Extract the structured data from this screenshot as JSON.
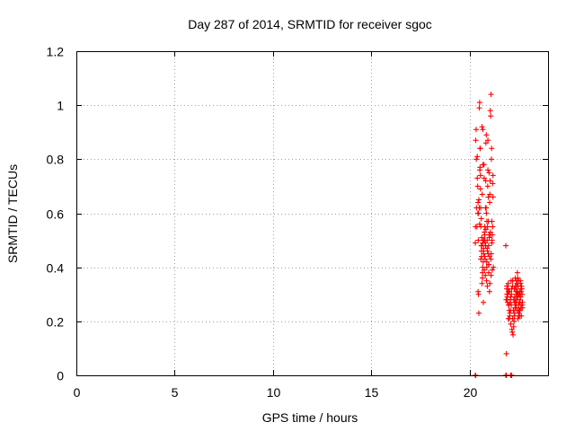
{
  "chart_data": {
    "type": "scatter",
    "title": "Day 287 of 2014, SRMTID for receiver sgoc",
    "xlabel": "GPS time / hours",
    "ylabel": "SRMTID / TECUs",
    "xlim": [
      0,
      24
    ],
    "ylim": [
      0,
      1.2
    ],
    "x_ticks": [
      0,
      5,
      10,
      15,
      20
    ],
    "x_tick_labels": [
      "0",
      "5",
      "10",
      "15",
      "20"
    ],
    "y_ticks": [
      0,
      0.2,
      0.4,
      0.6,
      0.8,
      1.0,
      1.2
    ],
    "y_tick_labels": [
      "0",
      "0.2",
      "0.4",
      "0.6",
      "0.8",
      "1",
      "1.2"
    ],
    "grid": true,
    "marker": "+",
    "color": "#ff0000",
    "series": [
      {
        "x": [
          20.3,
          20.32,
          20.34,
          20.36,
          20.38,
          20.4,
          20.42,
          20.44,
          20.46,
          20.48,
          20.5,
          20.52,
          20.54,
          20.56,
          20.58,
          20.6,
          20.62,
          20.64,
          20.66,
          20.68,
          20.7,
          20.72,
          20.74,
          20.76,
          20.78,
          20.8,
          20.82,
          20.84,
          20.86,
          20.88,
          20.9,
          20.92,
          20.94,
          20.96,
          20.98,
          21.0,
          21.02,
          21.04,
          21.06,
          21.08,
          21.1,
          21.12,
          21.14,
          21.16,
          21.18,
          21.2,
          21.22,
          20.35,
          20.45,
          20.55,
          20.65,
          20.75,
          20.85,
          20.95,
          21.05,
          21.15,
          20.5,
          20.52,
          20.6,
          20.7,
          20.8,
          20.9,
          21.0,
          21.1,
          20.58,
          20.62,
          20.68,
          20.72,
          20.78,
          20.82,
          20.88,
          20.92,
          20.98,
          21.02,
          20.4,
          20.48,
          20.56,
          20.66,
          20.76,
          20.86,
          20.96,
          21.06,
          21.16,
          20.31,
          20.43,
          20.53,
          20.63,
          20.73,
          20.83,
          20.93,
          21.03,
          21.13,
          20.57,
          20.67,
          20.77,
          20.87,
          20.97,
          21.07,
          20.61,
          20.71,
          20.81,
          20.91,
          21.01,
          21.11,
          20.44,
          20.54,
          20.64,
          20.74,
          20.84,
          20.94,
          21.04,
          21.14,
          21.18,
          21.2,
          20.46,
          20.69,
          20.89,
          21.09,
          20.79,
          20.99,
          21.85,
          21.88,
          21.9,
          21.92,
          21.94,
          21.96,
          21.98,
          22.0,
          22.02,
          22.04,
          22.06,
          22.08,
          22.1,
          22.12,
          22.14,
          22.16,
          22.18,
          22.2,
          22.22,
          22.24,
          22.26,
          22.28,
          22.3,
          22.32,
          22.34,
          22.36,
          22.38,
          22.4,
          22.42,
          22.44,
          22.46,
          22.48,
          22.5,
          22.52,
          22.54,
          22.56,
          22.58,
          22.6,
          22.62,
          22.64,
          22.66,
          22.68,
          22.7,
          21.9,
          21.95,
          22.0,
          22.05,
          22.1,
          22.15,
          22.2,
          22.25,
          22.3,
          22.35,
          22.4,
          22.45,
          22.5,
          22.55,
          22.6,
          22.65,
          21.87,
          21.93,
          21.99,
          22.07,
          22.13,
          22.19,
          22.27,
          22.33,
          22.39,
          22.47,
          22.53,
          22.59,
          22.67,
          22.42,
          22.44,
          22.46,
          22.48,
          22.5,
          22.52,
          22.54,
          22.56,
          22.58,
          22.62,
          22.36,
          22.38,
          22.31,
          22.29,
          22.41,
          22.57,
          22.63,
          22.69,
          21.91,
          21.97,
          22.03,
          22.09,
          20.3,
          20.32,
          21.85,
          21.88,
          22.1,
          22.15
        ],
        "y": [
          0.49,
          0.87,
          0.91,
          0.62,
          0.55,
          0.81,
          0.7,
          0.64,
          0.3,
          0.23,
          0.99,
          1.01,
          0.77,
          0.74,
          0.55,
          0.48,
          0.44,
          0.34,
          0.36,
          0.91,
          0.42,
          0.47,
          0.5,
          0.39,
          0.52,
          0.49,
          0.62,
          0.86,
          0.89,
          0.42,
          0.5,
          0.55,
          0.76,
          0.66,
          0.38,
          0.52,
          0.31,
          0.34,
          0.98,
          0.96,
          1.04,
          0.8,
          0.57,
          0.52,
          0.71,
          0.66,
          0.4,
          0.8,
          0.5,
          0.84,
          0.67,
          0.73,
          0.62,
          0.45,
          0.72,
          0.5,
          0.62,
          0.56,
          0.58,
          0.5,
          0.43,
          0.47,
          0.75,
          0.37,
          0.43,
          0.48,
          0.4,
          0.46,
          0.55,
          0.48,
          0.4,
          0.46,
          0.41,
          0.44,
          0.73,
          0.65,
          0.69,
          0.38,
          0.53,
          0.6,
          0.57,
          0.52,
          0.39,
          0.55,
          0.6,
          0.76,
          0.51,
          0.45,
          0.72,
          0.7,
          0.64,
          0.84,
          0.62,
          0.49,
          0.44,
          0.35,
          0.48,
          0.53,
          0.46,
          0.27,
          0.37,
          0.33,
          0.51,
          0.45,
          0.31,
          0.84,
          0.92,
          0.78,
          0.54,
          0.87,
          0.67,
          0.49,
          0.55,
          0.74,
          0.6,
          0.78,
          0.57,
          0.43,
          0.5,
          0.41,
          0.48,
          0.08,
          0.33,
          0.29,
          0.27,
          0.32,
          0.21,
          0.26,
          0.24,
          0.31,
          0.23,
          0.28,
          0.19,
          0.35,
          0.3,
          0.17,
          0.16,
          0.21,
          0.15,
          0.24,
          0.28,
          0.22,
          0.27,
          0.25,
          0.33,
          0.31,
          0.26,
          0.29,
          0.34,
          0.38,
          0.36,
          0.3,
          0.23,
          0.24,
          0.27,
          0.31,
          0.28,
          0.34,
          0.25,
          0.22,
          0.32,
          0.3,
          0.27,
          0.32,
          0.3,
          0.26,
          0.22,
          0.29,
          0.32,
          0.35,
          0.18,
          0.23,
          0.27,
          0.33,
          0.31,
          0.26,
          0.22,
          0.29,
          0.33,
          0.28,
          0.28,
          0.31,
          0.27,
          0.26,
          0.33,
          0.2,
          0.36,
          0.35,
          0.21,
          0.3,
          0.35,
          0.26,
          0.31,
          0.24,
          0.29,
          0.33,
          0.35,
          0.22,
          0.24,
          0.3,
          0.27,
          0.32,
          0.25,
          0.3,
          0.29,
          0.32,
          0.28,
          0.24,
          0.31,
          0.25,
          0.3,
          0.34,
          0.21,
          0.24,
          0.0,
          0.0,
          0.0,
          0.0,
          0.0,
          0.0
        ]
      }
    ]
  }
}
